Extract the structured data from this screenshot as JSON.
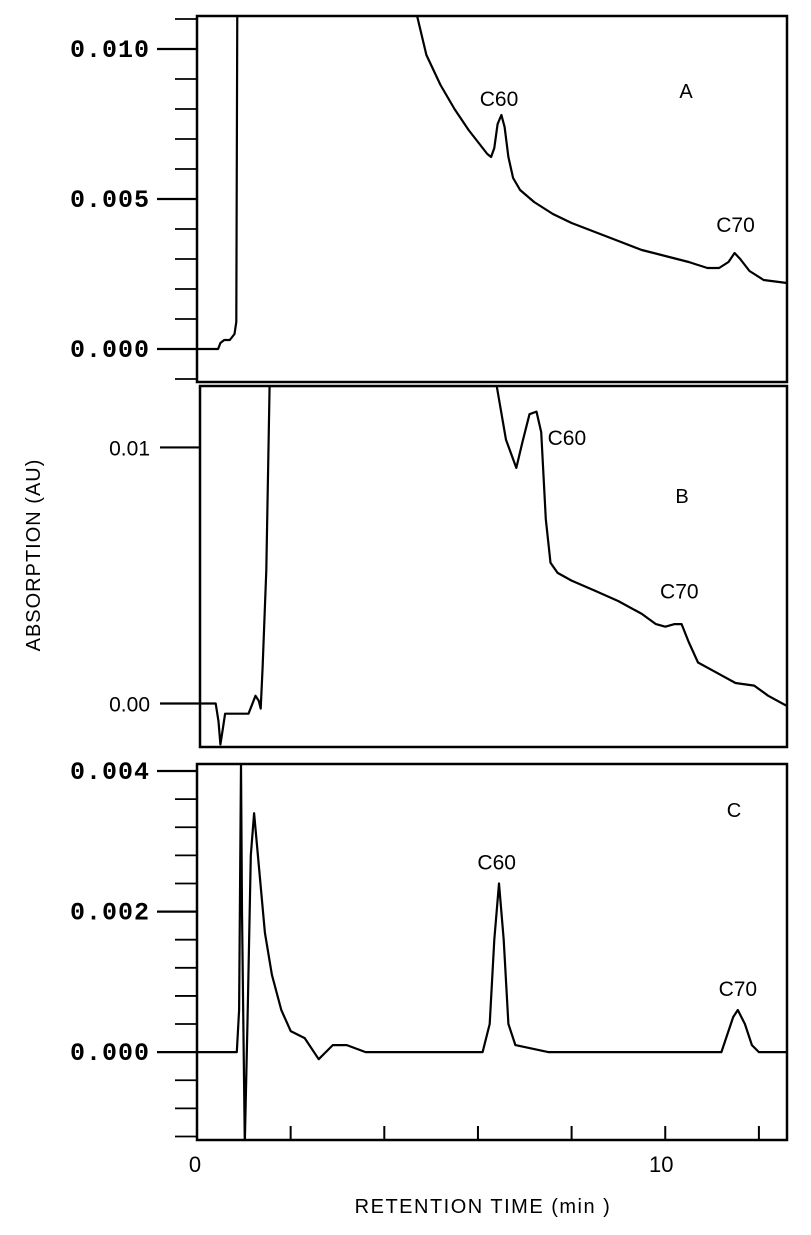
{
  "chart_data": {
    "type": "line",
    "ylabel": "ABSORPTION (AU)",
    "xlabel": "RETENTION TIME (min )",
    "x_tick_labels": [
      {
        "x": 0,
        "label": "0"
      },
      {
        "x": 10,
        "label": "10"
      }
    ],
    "xlim": [
      0,
      12.6
    ],
    "panels": [
      {
        "label": "A",
        "ylim": [
          -0.0011,
          0.0111
        ],
        "y_tick_labels": [
          {
            "y": 0.0,
            "label": "0.000"
          },
          {
            "y": 0.005,
            "label": "0.005"
          },
          {
            "y": 0.01,
            "label": "0.010"
          }
        ],
        "annotations": [
          {
            "text": "C60",
            "x": 6.45,
            "y": 0.0081
          },
          {
            "text": "C70",
            "x": 11.5,
            "y": 0.0039
          }
        ],
        "series": [
          {
            "points": [
              [
                0.0,
                0.0
              ],
              [
                0.45,
                0.0
              ],
              [
                0.5,
                0.0002
              ],
              [
                0.58,
                0.0003
              ],
              [
                0.7,
                0.0003
              ],
              [
                0.8,
                0.0005
              ],
              [
                0.84,
                0.0009
              ],
              [
                0.86,
                0.0115
              ],
              [
                4.7,
                0.0111
              ],
              [
                4.9,
                0.0098
              ],
              [
                5.2,
                0.0088
              ],
              [
                5.5,
                0.008
              ],
              [
                5.8,
                0.0073
              ],
              [
                6.05,
                0.0068
              ],
              [
                6.2,
                0.0065
              ],
              [
                6.28,
                0.0064
              ],
              [
                6.35,
                0.0067
              ],
              [
                6.42,
                0.0075
              ],
              [
                6.5,
                0.0078
              ],
              [
                6.57,
                0.0074
              ],
              [
                6.65,
                0.0064
              ],
              [
                6.75,
                0.0057
              ],
              [
                6.9,
                0.0053
              ],
              [
                7.2,
                0.0049
              ],
              [
                7.6,
                0.0045
              ],
              [
                8.0,
                0.0042
              ],
              [
                8.5,
                0.0039
              ],
              [
                9.0,
                0.0036
              ],
              [
                9.5,
                0.0033
              ],
              [
                10.0,
                0.0031
              ],
              [
                10.5,
                0.0029
              ],
              [
                10.9,
                0.0027
              ],
              [
                11.15,
                0.0027
              ],
              [
                11.35,
                0.0029
              ],
              [
                11.48,
                0.0032
              ],
              [
                11.6,
                0.003
              ],
              [
                11.8,
                0.0026
              ],
              [
                12.1,
                0.0023
              ],
              [
                12.6,
                0.0022
              ]
            ]
          }
        ]
      },
      {
        "label": "B",
        "ylim": [
          -0.0017,
          0.0124
        ],
        "y_tick_labels": [
          {
            "y": 0.0,
            "label": "0.00"
          },
          {
            "y": 0.01,
            "label": "0.01"
          }
        ],
        "annotations": [
          {
            "text": "C60",
            "x": 7.9,
            "y": 0.0101
          },
          {
            "text": "C70",
            "x": 10.3,
            "y": 0.0041
          }
        ],
        "series": [
          {
            "points": [
              [
                0.0,
                0.0
              ],
              [
                0.4,
                0.0
              ],
              [
                0.46,
                -0.0007
              ],
              [
                0.5,
                -0.0016
              ],
              [
                0.55,
                -0.001
              ],
              [
                0.6,
                -0.0004
              ],
              [
                0.8,
                -0.0004
              ],
              [
                1.1,
                -0.0004
              ],
              [
                1.25,
                0.0003
              ],
              [
                1.32,
                0.0001
              ],
              [
                1.36,
                -0.0002
              ],
              [
                1.4,
                0.0014
              ],
              [
                1.48,
                0.0052
              ],
              [
                1.55,
                0.0124
              ],
              [
                6.4,
                0.0124
              ],
              [
                6.6,
                0.0103
              ],
              [
                6.82,
                0.0092
              ],
              [
                6.95,
                0.0102
              ],
              [
                7.1,
                0.0113
              ],
              [
                7.25,
                0.0114
              ],
              [
                7.35,
                0.0106
              ],
              [
                7.45,
                0.0072
              ],
              [
                7.55,
                0.0055
              ],
              [
                7.7,
                0.0051
              ],
              [
                8.0,
                0.0048
              ],
              [
                8.5,
                0.0044
              ],
              [
                9.0,
                0.004
              ],
              [
                9.5,
                0.0035
              ],
              [
                9.8,
                0.0031
              ],
              [
                10.0,
                0.003
              ],
              [
                10.2,
                0.0031
              ],
              [
                10.35,
                0.0031
              ],
              [
                10.5,
                0.0024
              ],
              [
                10.7,
                0.0016
              ],
              [
                11.0,
                0.0013
              ],
              [
                11.5,
                0.0008
              ],
              [
                11.9,
                0.0007
              ],
              [
                12.2,
                0.0003
              ],
              [
                12.6,
                -0.0001
              ]
            ]
          }
        ]
      },
      {
        "label": "C",
        "ylim": [
          -0.00125,
          0.0041
        ],
        "y_tick_labels": [
          {
            "y": 0.0,
            "label": "0.000"
          },
          {
            "y": 0.002,
            "label": "0.002"
          },
          {
            "y": 0.004,
            "label": "0.004"
          }
        ],
        "annotations": [
          {
            "text": "C60",
            "x": 6.4,
            "y": 0.0026
          },
          {
            "text": "C70",
            "x": 11.55,
            "y": 0.0008
          }
        ],
        "series": [
          {
            "points": [
              [
                0.0,
                0.0
              ],
              [
                0.7,
                0.0
              ],
              [
                0.85,
                0.0
              ],
              [
                0.9,
                0.0006
              ],
              [
                0.94,
                0.0041
              ],
              [
                0.96,
                0.002
              ],
              [
                1.02,
                -0.0013
              ],
              [
                1.08,
                0.0005
              ],
              [
                1.15,
                0.0028
              ],
              [
                1.22,
                0.0034
              ],
              [
                1.3,
                0.0028
              ],
              [
                1.45,
                0.0017
              ],
              [
                1.6,
                0.0011
              ],
              [
                1.8,
                0.0006
              ],
              [
                2.0,
                0.0003
              ],
              [
                2.3,
                0.0002
              ],
              [
                2.6,
                -0.0001
              ],
              [
                2.75,
                0.0
              ],
              [
                2.9,
                0.0001
              ],
              [
                3.2,
                0.0001
              ],
              [
                3.6,
                0.0
              ],
              [
                4.5,
                0.0
              ],
              [
                5.5,
                0.0
              ],
              [
                6.1,
                0.0
              ],
              [
                6.25,
                0.0004
              ],
              [
                6.35,
                0.0016
              ],
              [
                6.45,
                0.0024
              ],
              [
                6.55,
                0.0016
              ],
              [
                6.65,
                0.0004
              ],
              [
                6.8,
                0.0001
              ],
              [
                7.5,
                0.0
              ],
              [
                9.0,
                0.0
              ],
              [
                10.5,
                0.0
              ],
              [
                11.2,
                0.0
              ],
              [
                11.3,
                0.0002
              ],
              [
                11.45,
                0.0005
              ],
              [
                11.55,
                0.0006
              ],
              [
                11.7,
                0.0004
              ],
              [
                11.85,
                0.0001
              ],
              [
                12.0,
                0.0
              ],
              [
                12.6,
                0.0
              ]
            ]
          }
        ]
      }
    ]
  }
}
